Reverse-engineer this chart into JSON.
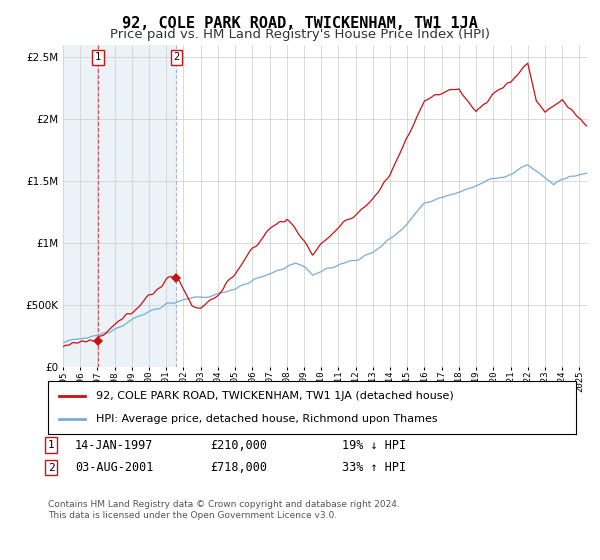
{
  "title": "92, COLE PARK ROAD, TWICKENHAM, TW1 1JA",
  "subtitle": "Price paid vs. HM Land Registry's House Price Index (HPI)",
  "legend_line1": "92, COLE PARK ROAD, TWICKENHAM, TW1 1JA (detached house)",
  "legend_line2": "HPI: Average price, detached house, Richmond upon Thames",
  "transaction1_date": "14-JAN-1997",
  "transaction1_price": "£210,000",
  "transaction1_hpi": "19% ↓ HPI",
  "transaction1_x": 1997.04,
  "transaction1_y": 210000,
  "transaction2_date": "03-AUG-2001",
  "transaction2_price": "£718,000",
  "transaction2_hpi": "33% ↑ HPI",
  "transaction2_x": 2001.58,
  "transaction2_y": 718000,
  "footnote1": "Contains HM Land Registry data © Crown copyright and database right 2024.",
  "footnote2": "This data is licensed under the Open Government Licence v3.0.",
  "ylim": [
    0,
    2600000
  ],
  "xlim_start": 1995.0,
  "xlim_end": 2025.5,
  "hpi_color": "#7aadd4",
  "price_color": "#cc1111",
  "shade_color": "#d8e8f5",
  "grid_color": "#cccccc",
  "background_color": "#ffffff",
  "title_fontsize": 11,
  "subtitle_fontsize": 9.5
}
